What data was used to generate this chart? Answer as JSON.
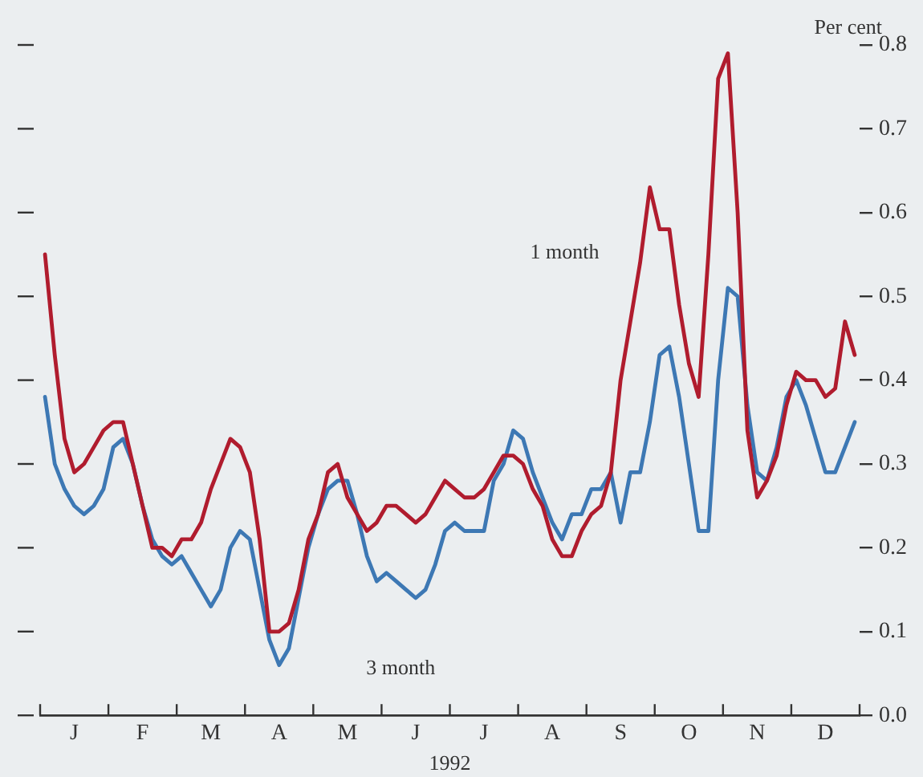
{
  "chart_data": {
    "type": "line",
    "xlabel": "1992",
    "ylabel": "Per cent",
    "categories": [
      null,
      null,
      null,
      "J",
      null,
      null,
      null,
      null,
      null,
      null,
      "F",
      null,
      null,
      null,
      null,
      null,
      null,
      "M",
      null,
      null,
      null,
      null,
      null,
      null,
      "A",
      null,
      null,
      null,
      null,
      null,
      null,
      "M",
      null,
      null,
      null,
      null,
      null,
      null,
      "J",
      null,
      null,
      null,
      null,
      null,
      null,
      "J",
      null,
      null,
      null,
      null,
      null,
      null,
      "A",
      null,
      null,
      null,
      null,
      null,
      null,
      "S",
      null,
      null,
      null,
      null,
      null,
      null,
      "O",
      null,
      null,
      null,
      null,
      null,
      null,
      "N",
      null,
      null,
      null,
      null,
      null,
      null,
      "D",
      null,
      null,
      null
    ],
    "ylim": [
      0,
      0.8
    ],
    "yticks": [
      {
        "value": 0,
        "label": "0.0"
      },
      0.1,
      0.2,
      0.3,
      0.4,
      0.5,
      0.6,
      0.7,
      0.8
    ],
    "grid": false,
    "legend": false,
    "marker": "none",
    "line_style": "solid",
    "series": [
      {
        "name": "1 month",
        "color": "#b01c2e",
        "values": [
          0.55,
          0.43,
          0.33,
          0.29,
          0.3,
          0.32,
          0.34,
          0.35,
          0.35,
          0.3,
          0.25,
          0.2,
          0.2,
          0.19,
          0.21,
          0.21,
          0.23,
          0.27,
          0.3,
          0.33,
          0.32,
          0.29,
          0.21,
          0.1,
          0.1,
          0.11,
          0.15,
          0.21,
          0.24,
          0.29,
          0.3,
          0.26,
          0.24,
          0.22,
          0.23,
          0.25,
          0.25,
          0.24,
          0.23,
          0.24,
          0.26,
          0.28,
          0.27,
          0.26,
          0.26,
          0.27,
          0.29,
          0.31,
          0.31,
          0.3,
          0.27,
          0.25,
          0.21,
          0.19,
          0.19,
          0.22,
          0.24,
          0.25,
          0.29,
          0.4,
          0.47,
          0.54,
          0.63,
          0.58,
          0.58,
          0.49,
          0.42,
          0.38,
          0.55,
          0.76,
          0.79,
          0.6,
          0.34,
          0.26,
          0.28,
          0.31,
          0.37,
          0.41,
          0.4,
          0.4,
          0.38,
          0.39,
          0.47,
          0.43
        ]
      },
      {
        "name": "3 month",
        "color": "#3d78b4",
        "values": [
          0.38,
          0.3,
          0.27,
          0.25,
          0.24,
          0.25,
          0.27,
          0.32,
          0.33,
          0.3,
          0.25,
          0.21,
          0.19,
          0.18,
          0.19,
          0.17,
          0.15,
          0.13,
          0.15,
          0.2,
          0.22,
          0.21,
          0.15,
          0.09,
          0.06,
          0.08,
          0.14,
          0.2,
          0.24,
          0.27,
          0.28,
          0.28,
          0.24,
          0.19,
          0.16,
          0.17,
          0.16,
          0.15,
          0.14,
          0.15,
          0.18,
          0.22,
          0.23,
          0.22,
          0.22,
          0.22,
          0.28,
          0.3,
          0.34,
          0.33,
          0.29,
          0.26,
          0.23,
          0.21,
          0.24,
          0.24,
          0.27,
          0.27,
          0.29,
          0.23,
          0.29,
          0.29,
          0.35,
          0.43,
          0.44,
          0.38,
          0.3,
          0.22,
          0.22,
          0.4,
          0.51,
          0.5,
          0.37,
          0.29,
          0.28,
          0.32,
          0.38,
          0.4,
          0.37,
          0.33,
          0.29,
          0.29,
          0.32,
          0.35
        ]
      }
    ]
  }
}
